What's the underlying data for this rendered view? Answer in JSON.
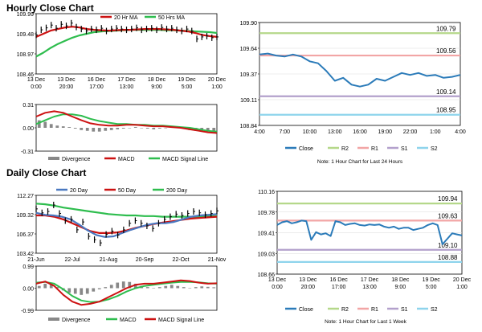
{
  "sections": {
    "hourly_title": "Hourly Close Chart",
    "daily_title": "Daily Close Chart"
  },
  "colors": {
    "price": "#000000",
    "ma_red": "#cc1111",
    "ma_green": "#2ebd4e",
    "ma_blue": "#4a78c0",
    "close": "#2b7bb9",
    "r2": "#b5d88a",
    "r1": "#f2a5a5",
    "s1": "#b3a0cc",
    "s2": "#8ed4ec",
    "divergence": "#888888",
    "grid": "#d9d9d9"
  },
  "chart_data": [
    {
      "id": "hourly_price",
      "type": "line",
      "legend": [
        "20 Hr MA",
        "50 Hrs MA"
      ],
      "y_ticks": [
        "109.99",
        "109.48",
        "108.97",
        "108.46"
      ],
      "ylim": [
        108.46,
        109.99
      ],
      "x_ticks": [
        {
          "top": "13 Dec",
          "bottom": "0:00"
        },
        {
          "top": "13 Dec",
          "bottom": "20:00"
        },
        {
          "top": "16 Dec",
          "bottom": "17:00"
        },
        {
          "top": "17 Dec",
          "bottom": "13:00"
        },
        {
          "top": "18 Dec",
          "bottom": "9:00"
        },
        {
          "top": "19 Dec",
          "bottom": "5:00"
        },
        {
          "top": "20 Dec",
          "bottom": "1:00"
        }
      ],
      "series": [
        {
          "name": "Price",
          "color_key": "price",
          "style": "bar",
          "values": [
            109.45,
            109.58,
            109.63,
            109.7,
            109.62,
            109.72,
            109.68,
            109.75,
            109.65,
            109.6,
            109.55,
            109.6,
            109.58,
            109.62,
            109.55,
            109.6,
            109.62,
            109.6,
            109.58,
            109.6,
            109.63,
            109.58,
            109.6,
            109.62,
            109.58,
            109.64,
            109.6,
            109.62,
            109.58,
            109.55,
            109.6,
            109.55,
            109.35,
            109.4,
            109.42,
            109.38,
            109.4
          ]
        },
        {
          "name": "20 Hr MA",
          "color_key": "ma_red",
          "values": [
            109.4,
            109.48,
            109.56,
            109.6,
            109.64,
            109.66,
            109.64,
            109.6,
            109.58,
            109.57,
            109.56,
            109.57,
            109.58,
            109.58,
            109.59,
            109.6,
            109.6,
            109.6,
            109.59,
            109.58,
            109.56,
            109.54,
            109.5,
            109.45,
            109.42,
            109.4
          ]
        },
        {
          "name": "50 Hrs MA",
          "color_key": "ma_green",
          "values": [
            108.9,
            109.0,
            109.12,
            109.22,
            109.3,
            109.38,
            109.44,
            109.48,
            109.52,
            109.54,
            109.55,
            109.56,
            109.57,
            109.58,
            109.58,
            109.58,
            109.58,
            109.58,
            109.57,
            109.57,
            109.56,
            109.55,
            109.54,
            109.53,
            109.52,
            109.5
          ]
        }
      ]
    },
    {
      "id": "hourly_macd",
      "type": "line",
      "legend": [
        "Divergence",
        "MACD",
        "MACD Signal Line"
      ],
      "y_ticks": [
        "0.31",
        "0.00",
        "-0.31"
      ],
      "ylim": [
        -0.31,
        0.31
      ],
      "divergence": [
        0.1,
        0.08,
        0.05,
        0.03,
        0.02,
        0.01,
        -0.01,
        -0.03,
        -0.04,
        -0.05,
        -0.05,
        -0.04,
        -0.03,
        -0.02,
        -0.01,
        0.0,
        0.01,
        0.0,
        -0.01,
        -0.02,
        -0.01,
        0.0,
        0.01,
        0.0,
        -0.01,
        -0.03,
        -0.04,
        -0.05,
        -0.05,
        -0.04
      ],
      "series": [
        {
          "name": "MACD",
          "color_key": "ma_red",
          "values": [
            0.15,
            0.2,
            0.22,
            0.2,
            0.15,
            0.1,
            0.06,
            0.04,
            0.03,
            0.03,
            0.04,
            0.04,
            0.03,
            0.02,
            0.02,
            0.01,
            0.0,
            -0.02,
            -0.04,
            -0.06,
            -0.07
          ]
        },
        {
          "name": "MACD Signal Line",
          "color_key": "ma_green",
          "values": [
            0.05,
            0.1,
            0.15,
            0.18,
            0.18,
            0.16,
            0.12,
            0.09,
            0.07,
            0.05,
            0.05,
            0.04,
            0.04,
            0.03,
            0.03,
            0.02,
            0.01,
            0.0,
            -0.02,
            -0.04,
            -0.05
          ]
        }
      ]
    },
    {
      "id": "hourly_close",
      "type": "line",
      "legend": [
        "Close",
        "R2",
        "R1",
        "S1",
        "S2"
      ],
      "note": "Note: 1 Hour Chart for Last 24 Hours",
      "y_ticks": [
        "109.90",
        "109.64",
        "109.37",
        "109.11",
        "108.84"
      ],
      "ylim": [
        108.84,
        109.9
      ],
      "x_ticks": [
        "4:00",
        "7:00",
        "10:00",
        "13:00",
        "16:00",
        "19:00",
        "22:00",
        "1:00",
        "4:00"
      ],
      "levels": [
        {
          "name": "R2",
          "value": 109.79,
          "label": "109.79",
          "color_key": "r2"
        },
        {
          "name": "R1",
          "value": 109.56,
          "label": "109.56",
          "color_key": "r1"
        },
        {
          "name": "S1",
          "value": 109.14,
          "label": "109.14",
          "color_key": "s1"
        },
        {
          "name": "S2",
          "value": 108.95,
          "label": "108.95",
          "color_key": "s2"
        }
      ],
      "close": [
        109.57,
        109.58,
        109.56,
        109.55,
        109.57,
        109.55,
        109.5,
        109.48,
        109.4,
        109.3,
        109.33,
        109.26,
        109.24,
        109.26,
        109.32,
        109.3,
        109.34,
        109.38,
        109.36,
        109.38,
        109.35,
        109.36,
        109.33,
        109.34,
        109.36
      ]
    },
    {
      "id": "daily_price",
      "type": "line",
      "legend": [
        "20 Day",
        "50 Day",
        "200 Day"
      ],
      "y_ticks": [
        "112.27",
        "109.32",
        "106.37",
        "103.42"
      ],
      "ylim": [
        103.42,
        112.27
      ],
      "x_ticks": [
        "21-Jun",
        "22-Jul",
        "21-Aug",
        "20-Sep",
        "22-Oct",
        "21-Nov"
      ],
      "series": [
        {
          "name": "Price",
          "color_key": "price",
          "style": "bar",
          "values": [
            110.2,
            109.6,
            109.8,
            110.8,
            109.5,
            108.4,
            108.6,
            107.0,
            108.2,
            106.0,
            105.5,
            105.0,
            106.3,
            106.8,
            106.2,
            107.0,
            108.0,
            108.4,
            108.0,
            107.6,
            107.2,
            108.0,
            108.6,
            109.0,
            109.4,
            109.2,
            109.5,
            109.8,
            109.6,
            109.3,
            109.5,
            109.9
          ]
        },
        {
          "name": "20 Day",
          "color_key": "ma_blue",
          "values": [
            109.6,
            109.3,
            109.2,
            109.0,
            108.6,
            107.8,
            106.9,
            106.2,
            105.9,
            106.0,
            106.5,
            107.0,
            107.4,
            107.8,
            108.0,
            108.0,
            108.2,
            108.6,
            109.0,
            109.2,
            109.3,
            109.4
          ]
        },
        {
          "name": "50 Day",
          "color_key": "ma_red",
          "values": [
            109.2,
            109.2,
            109.0,
            108.6,
            108.0,
            107.4,
            106.8,
            106.5,
            106.5,
            106.6,
            106.9,
            107.3,
            107.6,
            107.9,
            108.1,
            108.3,
            108.5,
            108.7,
            108.8,
            108.9,
            109.0
          ]
        },
        {
          "name": "200 Day",
          "color_key": "ma_green",
          "values": [
            111.0,
            110.9,
            110.7,
            110.4,
            110.2,
            110.0,
            109.8,
            109.6,
            109.4,
            109.3,
            109.2,
            109.2,
            109.1,
            109.1,
            109.0,
            109.0,
            109.0,
            109.0,
            109.0,
            109.1,
            109.1
          ]
        }
      ]
    },
    {
      "id": "daily_macd",
      "type": "line",
      "legend": [
        "Divergence",
        "MACD",
        "MACD Signal Line"
      ],
      "y_ticks": [
        "0.99",
        "0.00",
        "-0.99"
      ],
      "ylim": [
        -0.99,
        0.99
      ],
      "divergence": [
        0.1,
        0.2,
        0.15,
        0.05,
        -0.1,
        -0.2,
        -0.25,
        -0.3,
        -0.25,
        -0.15,
        -0.05,
        0.05,
        0.15,
        0.25,
        0.3,
        0.28,
        0.2,
        0.1,
        0.05,
        0.0,
        0.05,
        0.1,
        0.15,
        0.1,
        0.05,
        0.0,
        0.05,
        0.08,
        0.06,
        0.04
      ],
      "series": [
        {
          "name": "MACD",
          "color_key": "ma_red",
          "values": [
            0.2,
            0.3,
            0.1,
            -0.3,
            -0.6,
            -0.75,
            -0.7,
            -0.6,
            -0.4,
            -0.2,
            0.0,
            0.15,
            0.2,
            0.2,
            0.25,
            0.3,
            0.35,
            0.32,
            0.25,
            0.2,
            0.22
          ]
        },
        {
          "name": "MACD Signal Line",
          "color_key": "ma_green",
          "values": [
            0.25,
            0.28,
            0.2,
            -0.05,
            -0.35,
            -0.55,
            -0.62,
            -0.6,
            -0.5,
            -0.35,
            -0.15,
            0.0,
            0.1,
            0.15,
            0.2,
            0.25,
            0.28,
            0.28,
            0.26,
            0.22,
            0.2
          ]
        }
      ]
    },
    {
      "id": "daily_close",
      "type": "line",
      "legend": [
        "Close",
        "R2",
        "R1",
        "S1",
        "S2"
      ],
      "note": "Note: 1 Hour Chart for Last 1 Week",
      "y_ticks": [
        "110.16",
        "109.78",
        "109.41",
        "109.03",
        "108.66"
      ],
      "ylim": [
        108.66,
        110.16
      ],
      "x_ticks": [
        {
          "top": "13 Dec",
          "bottom": "0:00"
        },
        {
          "top": "13 Dec",
          "bottom": "20:00"
        },
        {
          "top": "16 Dec",
          "bottom": "17:00"
        },
        {
          "top": "17 Dec",
          "bottom": "13:00"
        },
        {
          "top": "18 Dec",
          "bottom": "9:00"
        },
        {
          "top": "19 Dec",
          "bottom": "5:00"
        },
        {
          "top": "20 Dec",
          "bottom": "1:00"
        }
      ],
      "levels": [
        {
          "name": "R2",
          "value": 109.94,
          "label": "109.94",
          "color_key": "r2"
        },
        {
          "name": "R1",
          "value": 109.63,
          "label": "109.63",
          "color_key": "r1"
        },
        {
          "name": "S1",
          "value": 109.1,
          "label": "109.10",
          "color_key": "s1"
        },
        {
          "name": "S2",
          "value": 108.88,
          "label": "108.88",
          "color_key": "s2"
        }
      ],
      "close": [
        109.55,
        109.6,
        109.62,
        109.58,
        109.6,
        109.63,
        109.62,
        109.28,
        109.42,
        109.38,
        109.4,
        109.35,
        109.62,
        109.6,
        109.55,
        109.57,
        109.58,
        109.55,
        109.54,
        109.56,
        109.55,
        109.56,
        109.52,
        109.5,
        109.52,
        109.48,
        109.5,
        109.5,
        109.46,
        109.48,
        109.5,
        109.55,
        109.58,
        109.55,
        109.2,
        109.3,
        109.4,
        109.38,
        109.36
      ]
    }
  ]
}
